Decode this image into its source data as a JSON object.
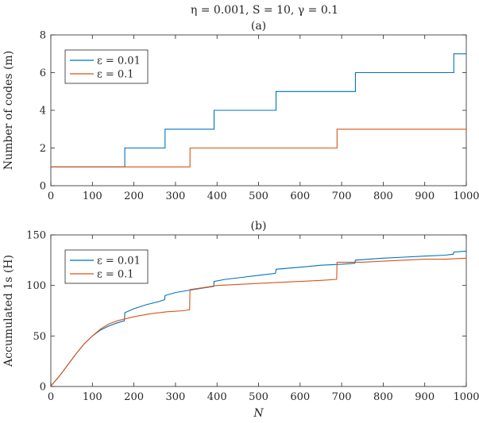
{
  "figure": {
    "title": "η = 0.001, S = 10, γ = 0.1"
  },
  "chart_data": [
    {
      "panel": "(a)",
      "type": "line",
      "step": true,
      "xlabel": "",
      "ylabel": "Number of codes (m)",
      "xlim": [
        0,
        1000
      ],
      "ylim": [
        0,
        8
      ],
      "xticks": [
        0,
        100,
        200,
        300,
        400,
        500,
        600,
        700,
        800,
        900,
        1000
      ],
      "yticks": [
        0,
        2,
        4,
        6,
        8
      ],
      "grid": false,
      "legend_position": "top-left",
      "series": [
        {
          "name": "ε = 0.01",
          "color": "#0072BD",
          "points": [
            [
              1,
              1
            ],
            [
              178,
              1
            ],
            [
              178,
              2
            ],
            [
              275,
              2
            ],
            [
              275,
              3
            ],
            [
              393,
              3
            ],
            [
              393,
              4
            ],
            [
              542,
              4
            ],
            [
              542,
              5
            ],
            [
              733,
              5
            ],
            [
              733,
              6
            ],
            [
              970,
              6
            ],
            [
              970,
              7
            ],
            [
              1000,
              7
            ]
          ]
        },
        {
          "name": "ε = 0.1",
          "color": "#D95319",
          "points": [
            [
              1,
              1
            ],
            [
              335,
              1
            ],
            [
              335,
              2
            ],
            [
              689,
              2
            ],
            [
              689,
              3
            ],
            [
              1000,
              3
            ]
          ]
        }
      ]
    },
    {
      "panel": "(b)",
      "type": "line",
      "step": false,
      "xlabel": "N",
      "ylabel": "Accumulated 1s (H)",
      "xlim": [
        0,
        1000
      ],
      "ylim": [
        0,
        150
      ],
      "xticks": [
        0,
        100,
        200,
        300,
        400,
        500,
        600,
        700,
        800,
        900,
        1000
      ],
      "yticks": [
        0,
        50,
        100,
        150
      ],
      "grid": false,
      "legend_position": "top-left",
      "series": [
        {
          "name": "ε = 0.01",
          "color": "#0072BD",
          "points": [
            [
              1,
              1
            ],
            [
              20,
              10
            ],
            [
              40,
              21
            ],
            [
              60,
              32
            ],
            [
              80,
              42
            ],
            [
              100,
              50
            ],
            [
              120,
              56
            ],
            [
              140,
              60
            ],
            [
              160,
              63
            ],
            [
              177,
              65
            ],
            [
              178,
              73
            ],
            [
              200,
              77
            ],
            [
              230,
              81
            ],
            [
              260,
              84
            ],
            [
              274,
              86
            ],
            [
              275,
              90
            ],
            [
              300,
              93
            ],
            [
              330,
              95
            ],
            [
              360,
              97
            ],
            [
              392,
              99
            ],
            [
              393,
              104
            ],
            [
              420,
              106
            ],
            [
              460,
              108
            ],
            [
              500,
              110
            ],
            [
              541,
              112
            ],
            [
              542,
              116
            ],
            [
              600,
              118
            ],
            [
              650,
              120
            ],
            [
              700,
              121
            ],
            [
              732,
              122
            ],
            [
              733,
              125
            ],
            [
              800,
              127
            ],
            [
              850,
              128
            ],
            [
              900,
              129
            ],
            [
              950,
              130
            ],
            [
              969,
              131
            ],
            [
              970,
              133
            ],
            [
              1000,
              134
            ]
          ]
        },
        {
          "name": "ε = 0.1",
          "color": "#D95319",
          "points": [
            [
              1,
              1
            ],
            [
              20,
              10
            ],
            [
              40,
              21
            ],
            [
              60,
              32
            ],
            [
              80,
              42
            ],
            [
              100,
              50
            ],
            [
              120,
              57
            ],
            [
              140,
              62
            ],
            [
              160,
              65
            ],
            [
              180,
              67
            ],
            [
              200,
              69
            ],
            [
              240,
              72
            ],
            [
              280,
              74
            ],
            [
              320,
              75
            ],
            [
              334,
              76
            ],
            [
              335,
              96
            ],
            [
              370,
              98
            ],
            [
              400,
              100
            ],
            [
              450,
              101
            ],
            [
              500,
              102
            ],
            [
              550,
              103
            ],
            [
              600,
              104
            ],
            [
              650,
              105
            ],
            [
              688,
              106
            ],
            [
              689,
              123
            ],
            [
              750,
              123
            ],
            [
              800,
              124
            ],
            [
              850,
              125
            ],
            [
              900,
              126
            ],
            [
              950,
              126
            ],
            [
              1000,
              127
            ]
          ]
        }
      ]
    }
  ]
}
